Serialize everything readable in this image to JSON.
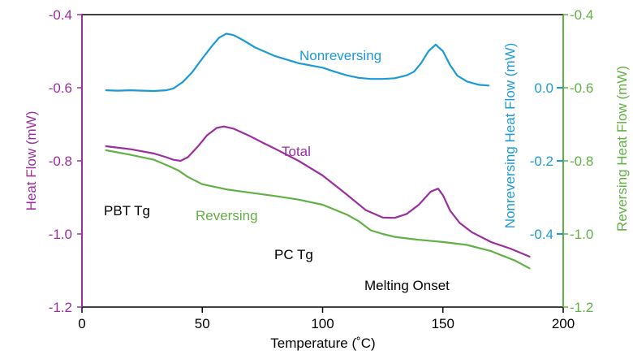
{
  "chart_data": {
    "type": "line",
    "xlabel": "Temperature (˚C)",
    "xlim": [
      0,
      200
    ],
    "xticks": [
      "0",
      "50",
      "100",
      "150",
      "200"
    ],
    "axes": {
      "left": {
        "label": "Heat Flow (mW)",
        "color": "#9b2f9e",
        "ylim": [
          -1.2,
          -0.4
        ],
        "ticks": [
          "-0.4",
          "-0.6",
          "-0.8",
          "-1.0",
          "-1.2"
        ]
      },
      "nonreversing": {
        "label": "Nonreversing Heat Flow (mW)",
        "color": "#1c9ad6",
        "ticks": [
          "0.0",
          "-0.2",
          "-0.4"
        ]
      },
      "right": {
        "label": "Reversing Heat Flow (mW)",
        "color": "#62b046",
        "ylim": [
          -1.2,
          -0.4
        ],
        "ticks": [
          "-0.4",
          "-0.6",
          "-0.8",
          "-1.0",
          "-1.2"
        ]
      }
    },
    "series": [
      {
        "name": "Nonreversing",
        "color": "#1c9ad6",
        "points": [
          [
            10,
            -0.607
          ],
          [
            15,
            -0.608
          ],
          [
            20,
            -0.607
          ],
          [
            25,
            -0.608
          ],
          [
            30,
            -0.609
          ],
          [
            35,
            -0.607
          ],
          [
            38,
            -0.602
          ],
          [
            42,
            -0.584
          ],
          [
            46,
            -0.556
          ],
          [
            50,
            -0.52
          ],
          [
            54,
            -0.486
          ],
          [
            57,
            -0.463
          ],
          [
            60,
            -0.452
          ],
          [
            63,
            -0.456
          ],
          [
            67,
            -0.47
          ],
          [
            72,
            -0.49
          ],
          [
            80,
            -0.513
          ],
          [
            90,
            -0.533
          ],
          [
            100,
            -0.545
          ],
          [
            105,
            -0.556
          ],
          [
            110,
            -0.566
          ],
          [
            115,
            -0.573
          ],
          [
            120,
            -0.576
          ],
          [
            125,
            -0.576
          ],
          [
            130,
            -0.574
          ],
          [
            135,
            -0.566
          ],
          [
            138,
            -0.556
          ],
          [
            141,
            -0.532
          ],
          [
            144,
            -0.5
          ],
          [
            147,
            -0.482
          ],
          [
            150,
            -0.5
          ],
          [
            153,
            -0.538
          ],
          [
            156,
            -0.567
          ],
          [
            160,
            -0.583
          ],
          [
            165,
            -0.592
          ],
          [
            169,
            -0.594
          ]
        ]
      },
      {
        "name": "Total",
        "color": "#9b2f9e",
        "points": [
          [
            10,
            -0.76
          ],
          [
            20,
            -0.768
          ],
          [
            30,
            -0.78
          ],
          [
            35,
            -0.79
          ],
          [
            38,
            -0.797
          ],
          [
            41,
            -0.8
          ],
          [
            44,
            -0.79
          ],
          [
            48,
            -0.762
          ],
          [
            52,
            -0.73
          ],
          [
            56,
            -0.71
          ],
          [
            59,
            -0.706
          ],
          [
            63,
            -0.712
          ],
          [
            70,
            -0.733
          ],
          [
            75,
            -0.75
          ],
          [
            80,
            -0.766
          ],
          [
            90,
            -0.8
          ],
          [
            100,
            -0.84
          ],
          [
            110,
            -0.892
          ],
          [
            118,
            -0.935
          ],
          [
            125,
            -0.955
          ],
          [
            130,
            -0.956
          ],
          [
            135,
            -0.945
          ],
          [
            140,
            -0.92
          ],
          [
            145,
            -0.884
          ],
          [
            148,
            -0.876
          ],
          [
            150,
            -0.894
          ],
          [
            153,
            -0.936
          ],
          [
            157,
            -0.97
          ],
          [
            162,
            -0.995
          ],
          [
            170,
            -1.022
          ],
          [
            178,
            -1.04
          ],
          [
            186,
            -1.062
          ]
        ]
      },
      {
        "name": "Reversing",
        "color": "#62b046",
        "points": [
          [
            10,
            -0.771
          ],
          [
            20,
            -0.783
          ],
          [
            30,
            -0.797
          ],
          [
            36,
            -0.814
          ],
          [
            40,
            -0.826
          ],
          [
            44,
            -0.844
          ],
          [
            50,
            -0.864
          ],
          [
            60,
            -0.878
          ],
          [
            70,
            -0.887
          ],
          [
            80,
            -0.896
          ],
          [
            90,
            -0.906
          ],
          [
            100,
            -0.92
          ],
          [
            110,
            -0.947
          ],
          [
            115,
            -0.965
          ],
          [
            120,
            -0.99
          ],
          [
            125,
            -1.0
          ],
          [
            130,
            -1.008
          ],
          [
            140,
            -1.016
          ],
          [
            150,
            -1.022
          ],
          [
            160,
            -1.03
          ],
          [
            170,
            -1.047
          ],
          [
            180,
            -1.073
          ],
          [
            186,
            -1.094
          ]
        ]
      }
    ],
    "annotations": [
      {
        "text": "Nonreversing",
        "color": "#1c9ad6"
      },
      {
        "text": "Total",
        "color": "#9b2f9e"
      },
      {
        "text": "Reversing",
        "color": "#62b046"
      },
      {
        "text": "PBT Tg",
        "color": "#000000"
      },
      {
        "text": "PC Tg",
        "color": "#000000"
      },
      {
        "text": "Melting Onset",
        "color": "#000000"
      }
    ]
  }
}
